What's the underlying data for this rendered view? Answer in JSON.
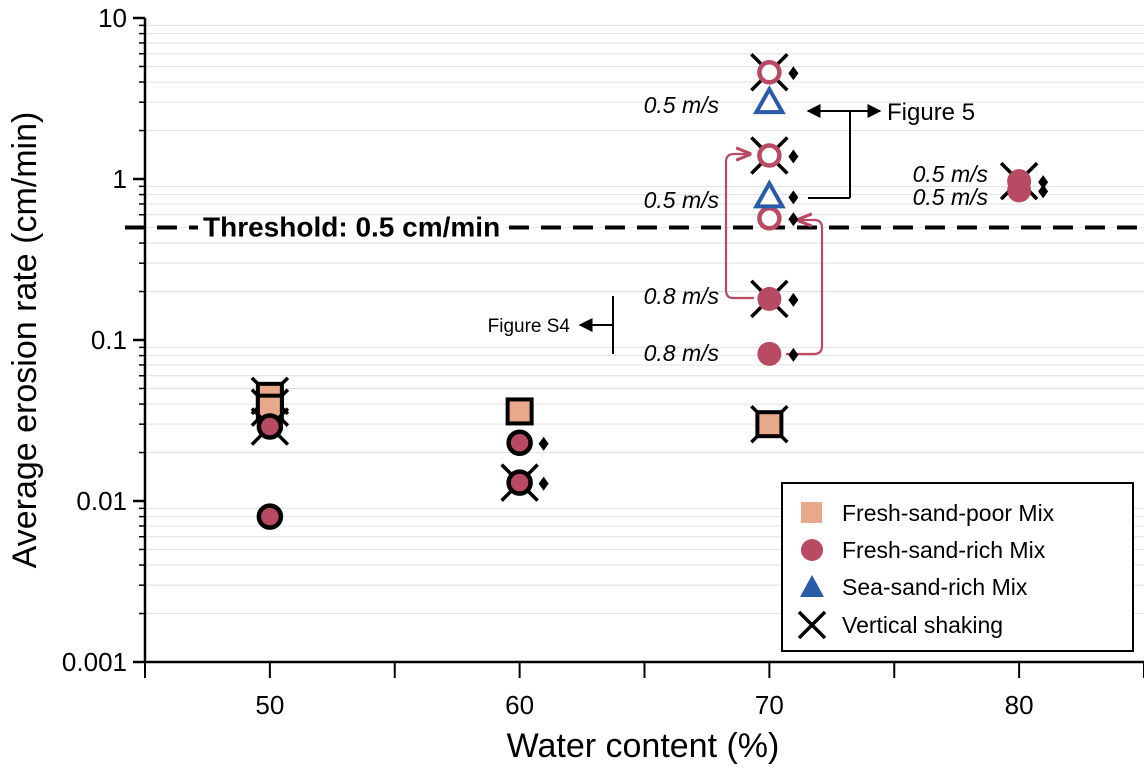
{
  "chart_data": {
    "type": "scatter",
    "xlabel": "Water content (%)",
    "ylabel": "Average erosion rate (cm/min)",
    "x_ticks": [
      "50",
      "60",
      "70",
      "80"
    ],
    "y_ticks": [
      "0.001",
      "0.01",
      "0.1",
      "1",
      "10"
    ],
    "xlim": [
      45,
      85
    ],
    "ylim": [
      0.001,
      10
    ],
    "y_scale": "log",
    "grid": "horizontal minor gridlines",
    "legend_position": "bottom-right",
    "threshold": {
      "value": 0.5,
      "label": "Threshold: 0.5 cm/min",
      "style": "dashed"
    },
    "colors": {
      "fresh_poor": "#e8a98a",
      "fresh_rich": "#b84a63",
      "sea_rich": "#2a5ba8",
      "arrow": "#b84a63"
    },
    "series": [
      {
        "name": "Fresh-sand-poor Mix",
        "marker": "square",
        "points": [
          {
            "x": 50,
            "y": 0.045,
            "shaking": true,
            "outline": true
          },
          {
            "x": 50,
            "y": 0.038,
            "shaking": true,
            "outline": true
          },
          {
            "x": 60,
            "y": 0.036,
            "shaking": false,
            "outline": true
          },
          {
            "x": 70,
            "y": 0.03,
            "shaking": true,
            "outline": true
          }
        ]
      },
      {
        "name": "Fresh-sand-rich Mix",
        "marker": "circle",
        "points": [
          {
            "x": 50,
            "y": 0.029,
            "shaking": true,
            "outline": true
          },
          {
            "x": 50,
            "y": 0.008,
            "shaking": false,
            "outline": true
          },
          {
            "x": 60,
            "y": 0.023,
            "shaking": false,
            "outline": true,
            "diamond": true
          },
          {
            "x": 60,
            "y": 0.013,
            "shaking": true,
            "outline": true,
            "diamond": true
          },
          {
            "x": 70,
            "y": 4.6,
            "shaking": true,
            "hollow": true,
            "diamond": true
          },
          {
            "x": 70,
            "y": 1.4,
            "shaking": true,
            "hollow": true,
            "diamond": true
          },
          {
            "x": 70,
            "y": 0.57,
            "shaking": false,
            "hollow": true,
            "diamond": true
          },
          {
            "x": 70,
            "y": 0.18,
            "shaking": true,
            "diamond": true
          },
          {
            "x": 70,
            "y": 0.082,
            "shaking": false,
            "diamond": true
          },
          {
            "x": 80,
            "y": 0.97,
            "shaking": true,
            "diamond": true
          },
          {
            "x": 80,
            "y": 0.85,
            "shaking": false,
            "diamond": true
          }
        ]
      },
      {
        "name": "Sea-sand-rich Mix",
        "marker": "triangle",
        "points": [
          {
            "x": 70,
            "y": 3.0,
            "shaking": false,
            "hollow": true
          },
          {
            "x": 70,
            "y": 0.78,
            "shaking": false,
            "hollow": true,
            "diamond": true
          }
        ]
      },
      {
        "name": "Vertical shaking",
        "marker": "x",
        "points": []
      }
    ],
    "annotations": {
      "speed_a": "0.5 m/s",
      "speed_b": "0.5 m/s",
      "speed_c": "0.8 m/s",
      "speed_d": "0.8 m/s",
      "speed_e": "0.5 m/s",
      "speed_f": "0.5 m/s",
      "figure5": "Figure 5",
      "figureS4": "Figure S4"
    }
  }
}
